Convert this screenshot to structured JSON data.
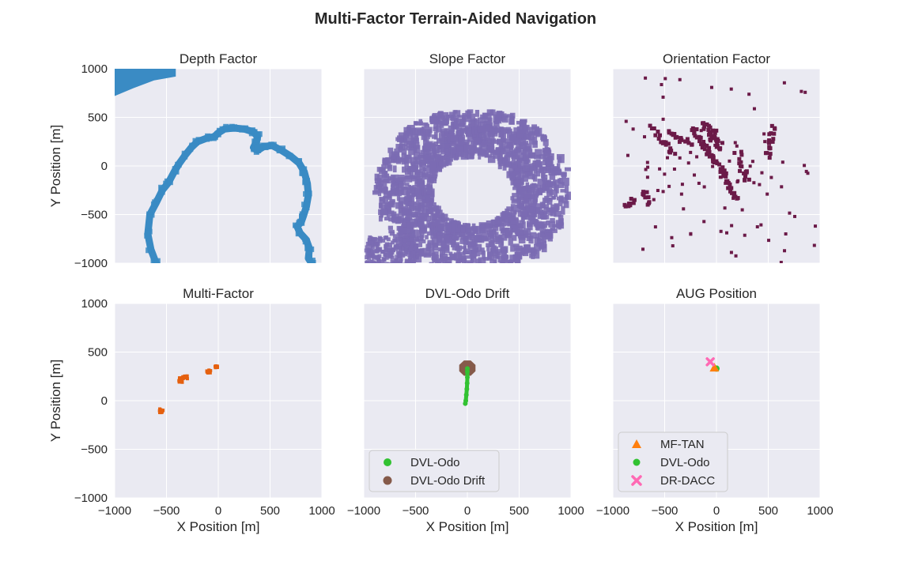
{
  "figure": {
    "title": "Multi-Factor Terrain-Aided Navigation",
    "colors": {
      "background": "#eaeaf2",
      "grid": "#ffffff"
    }
  },
  "chart_data": [
    {
      "id": "depth",
      "type": "scatter",
      "title": "Depth Factor",
      "xlabel": "",
      "ylabel": "Y Position [m]",
      "xlim": [
        -1000,
        1000
      ],
      "ylim": [
        -1000,
        1000
      ],
      "xticks": [
        "−1000",
        "−500",
        "0",
        "500",
        "1000"
      ],
      "yticks": [
        "−1000",
        "−500",
        "0",
        "500",
        "1000"
      ],
      "show_xticks": false,
      "show_yticks": true,
      "color": "#3a8bc4",
      "blocks": [
        [
          -1000,
          720,
          -1000,
          1000
        ],
        [
          -1000,
          1000,
          -550,
          880
        ],
        [
          -550,
          1000,
          -460,
          930
        ],
        [
          -460,
          1000,
          -420,
          960
        ]
      ],
      "paths": [
        [
          [
            -600,
            -1000
          ],
          [
            -650,
            -860
          ],
          [
            -680,
            -700
          ],
          [
            -660,
            -500
          ],
          [
            -600,
            -380
          ],
          [
            -540,
            -250
          ],
          [
            -480,
            -170
          ],
          [
            -420,
            -50
          ],
          [
            -380,
            20
          ],
          [
            -320,
            110
          ],
          [
            -260,
            190
          ],
          [
            -200,
            250
          ],
          [
            -100,
            290
          ],
          [
            -40,
            300
          ],
          [
            0,
            340
          ],
          [
            60,
            380
          ],
          [
            150,
            390
          ],
          [
            250,
            380
          ],
          [
            340,
            350
          ],
          [
            380,
            300
          ],
          [
            360,
            230
          ],
          [
            380,
            160
          ],
          [
            440,
            200
          ],
          [
            520,
            210
          ],
          [
            610,
            160
          ],
          [
            700,
            100
          ],
          [
            780,
            30
          ],
          [
            830,
            -60
          ],
          [
            860,
            -180
          ],
          [
            870,
            -300
          ],
          [
            850,
            -420
          ],
          [
            820,
            -520
          ],
          [
            800,
            -580
          ],
          [
            760,
            -620
          ],
          [
            790,
            -690
          ],
          [
            850,
            -760
          ],
          [
            880,
            -850
          ],
          [
            870,
            -950
          ],
          [
            900,
            -1000
          ]
        ],
        [
          [
            360,
            230
          ],
          [
            340,
            190
          ],
          [
            360,
            170
          ],
          [
            390,
            180
          ]
        ]
      ]
    },
    {
      "id": "slope",
      "type": "scatter",
      "title": "Slope Factor",
      "xlabel": "",
      "ylabel": "",
      "xlim": [
        -1000,
        1000
      ],
      "ylim": [
        -1000,
        1000
      ],
      "xticks": [
        "−1000",
        "−500",
        "0",
        "500",
        "1000"
      ],
      "yticks": [
        "−1000",
        "−500",
        "0",
        "500",
        "1000"
      ],
      "show_xticks": false,
      "show_yticks": false,
      "color": "#7b6bb3"
    },
    {
      "id": "orientation",
      "type": "scatter",
      "title": "Orientation Factor",
      "xlabel": "",
      "ylabel": "",
      "xlim": [
        -1000,
        1000
      ],
      "ylim": [
        -1000,
        1000
      ],
      "xticks": [
        "−1000",
        "−500",
        "0",
        "500",
        "1000"
      ],
      "yticks": [
        "−1000",
        "−500",
        "0",
        "500",
        "1000"
      ],
      "show_xticks": false,
      "show_yticks": false,
      "color": "#6b1a48"
    },
    {
      "id": "multi",
      "type": "scatter",
      "title": "Multi-Factor",
      "xlabel": "X Position [m]",
      "ylabel": "Y Position [m]",
      "xlim": [
        -1000,
        1000
      ],
      "ylim": [
        -1000,
        1000
      ],
      "xticks": [
        "−1000",
        "−500",
        "0",
        "500",
        "1000"
      ],
      "yticks": [
        "−1000",
        "−500",
        "0",
        "500",
        "1000"
      ],
      "show_xticks": true,
      "show_yticks": true,
      "color": "#e5600f",
      "clusters": [
        [
          -550,
          -105,
          50,
          40
        ],
        [
          -360,
          210,
          40,
          50
        ],
        [
          -320,
          240,
          45,
          30
        ],
        [
          -90,
          300,
          40,
          40
        ],
        [
          -20,
          350,
          25,
          25
        ]
      ]
    },
    {
      "id": "drift",
      "type": "scatter",
      "title": "DVL-Odo Drift",
      "xlabel": "X Position [m]",
      "ylabel": "",
      "xlim": [
        -1000,
        1000
      ],
      "ylim": [
        -1000,
        1000
      ],
      "xticks": [
        "−1000",
        "−500",
        "0",
        "500",
        "1000"
      ],
      "yticks": [
        "−1000",
        "−500",
        "0",
        "500",
        "1000"
      ],
      "show_xticks": true,
      "show_yticks": false,
      "series": [
        {
          "name": "DVL-Odo",
          "color": "#32c232",
          "marker": "circle",
          "path": [
            [
              -20,
              -30
            ],
            [
              -15,
              0
            ],
            [
              -10,
              60
            ],
            [
              -5,
              120
            ],
            [
              -2,
              180
            ],
            [
              0,
              240
            ],
            [
              0,
              300
            ],
            [
              0,
              330
            ]
          ]
        },
        {
          "name": "DVL-Odo Drift",
          "color": "#855a4a",
          "marker": "octagon",
          "center": [
            0,
            335
          ],
          "radius": 85
        }
      ],
      "legend": "lower-left"
    },
    {
      "id": "aug",
      "type": "scatter",
      "title": "AUG Position",
      "xlabel": "X Position [m]",
      "ylabel": "",
      "xlim": [
        -1000,
        1000
      ],
      "ylim": [
        -1000,
        1000
      ],
      "xticks": [
        "−1000",
        "−500",
        "0",
        "500",
        "1000"
      ],
      "yticks": [
        "−1000",
        "−500",
        "0",
        "500",
        "1000"
      ],
      "show_xticks": true,
      "show_yticks": false,
      "series": [
        {
          "name": "MF-TAN",
          "color": "#ff7f0e",
          "marker": "triangle",
          "points": [
            [
              -20,
              340
            ]
          ]
        },
        {
          "name": "DVL-Odo",
          "color": "#32c232",
          "marker": "circle",
          "points": [
            [
              0,
              330
            ]
          ]
        },
        {
          "name": "DR-DACC",
          "color": "#ff69b4",
          "marker": "x",
          "points": [
            [
              -60,
              400
            ]
          ]
        }
      ],
      "legend": "lower-left"
    }
  ]
}
